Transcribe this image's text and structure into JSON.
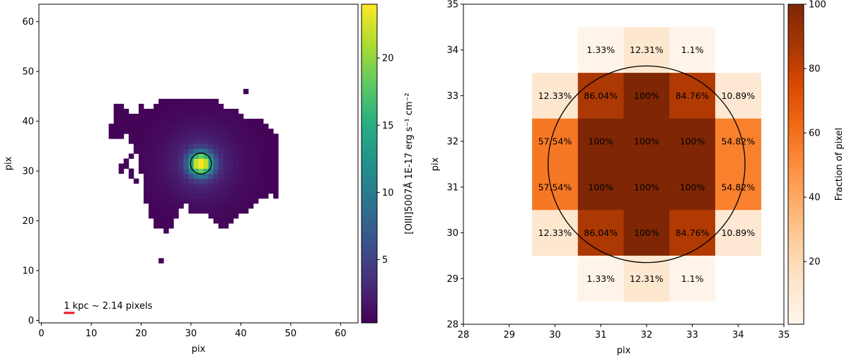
{
  "chart_data": [
    {
      "type": "heatmap",
      "title": "",
      "xlabel": "pix",
      "ylabel": "pix",
      "xlim": [
        -0.5,
        63.5
      ],
      "ylim": [
        -0.5,
        63.5
      ],
      "x_ticks": [
        0,
        10,
        20,
        30,
        40,
        50,
        60
      ],
      "y_ticks": [
        0,
        10,
        20,
        30,
        40,
        50,
        60
      ],
      "colormap": "viridis",
      "colorbar": {
        "label": "[OIII]5007Å 1E-17 erg s⁻¹ cm⁻²",
        "range": [
          0.3,
          24
        ],
        "ticks": [
          5,
          10,
          15,
          20
        ]
      },
      "peak_center": [
        32,
        31.5
      ],
      "aperture_circle": {
        "center": [
          32,
          31.5
        ],
        "radius": 2.1,
        "color": "#000000"
      },
      "isolated_pixels": [
        [
          41,
          46
        ],
        [
          24,
          12
        ]
      ],
      "scale_bar": {
        "label": "1 kpc ~ 2.14 pixels",
        "length_pix": 2.14,
        "start_x": 4.5,
        "y": 1.5,
        "color": "#e8141b"
      }
    },
    {
      "type": "heatmap",
      "title": "",
      "xlabel": "pix",
      "ylabel": "pix",
      "xlim": [
        28,
        35
      ],
      "ylim": [
        28,
        35
      ],
      "x_ticks": [
        28,
        29,
        30,
        31,
        32,
        33,
        34,
        35
      ],
      "y_ticks": [
        28,
        29,
        30,
        31,
        32,
        33,
        34,
        35
      ],
      "colormap": "Oranges",
      "colorbar": {
        "label": "Fraction of pixel",
        "range": [
          0.5,
          100
        ],
        "ticks": [
          20,
          40,
          60,
          80,
          100
        ]
      },
      "circle": {
        "center": [
          32,
          31.5
        ],
        "radius": 2.15,
        "color": "#000000"
      },
      "cells": [
        {
          "x": 31,
          "y": 34,
          "value": 1.33,
          "label": "1.33%"
        },
        {
          "x": 32,
          "y": 34,
          "value": 12.31,
          "label": "12.31%"
        },
        {
          "x": 33,
          "y": 34,
          "value": 1.1,
          "label": "1.1%"
        },
        {
          "x": 30,
          "y": 33,
          "value": 12.33,
          "label": "12.33%"
        },
        {
          "x": 31,
          "y": 33,
          "value": 86.04,
          "label": "86.04%"
        },
        {
          "x": 32,
          "y": 33,
          "value": 100,
          "label": "100%"
        },
        {
          "x": 33,
          "y": 33,
          "value": 84.76,
          "label": "84.76%"
        },
        {
          "x": 34,
          "y": 33,
          "value": 10.89,
          "label": "10.89%"
        },
        {
          "x": 30,
          "y": 32,
          "value": 57.54,
          "label": "57.54%"
        },
        {
          "x": 31,
          "y": 32,
          "value": 100,
          "label": "100%"
        },
        {
          "x": 32,
          "y": 32,
          "value": 100,
          "label": "100%"
        },
        {
          "x": 33,
          "y": 32,
          "value": 100,
          "label": "100%"
        },
        {
          "x": 34,
          "y": 32,
          "value": 54.82,
          "label": "54.82%"
        },
        {
          "x": 30,
          "y": 31,
          "value": 57.54,
          "label": "57.54%"
        },
        {
          "x": 31,
          "y": 31,
          "value": 100,
          "label": "100%"
        },
        {
          "x": 32,
          "y": 31,
          "value": 100,
          "label": "100%"
        },
        {
          "x": 33,
          "y": 31,
          "value": 100,
          "label": "100%"
        },
        {
          "x": 34,
          "y": 31,
          "value": 54.82,
          "label": "54.82%"
        },
        {
          "x": 30,
          "y": 30,
          "value": 12.33,
          "label": "12.33%"
        },
        {
          "x": 31,
          "y": 30,
          "value": 86.04,
          "label": "86.04%"
        },
        {
          "x": 32,
          "y": 30,
          "value": 100,
          "label": "100%"
        },
        {
          "x": 33,
          "y": 30,
          "value": 84.76,
          "label": "84.76%"
        },
        {
          "x": 34,
          "y": 30,
          "value": 10.89,
          "label": "10.89%"
        },
        {
          "x": 31,
          "y": 29,
          "value": 1.33,
          "label": "1.33%"
        },
        {
          "x": 32,
          "y": 29,
          "value": 12.31,
          "label": "12.31%"
        },
        {
          "x": 33,
          "y": 29,
          "value": 1.1,
          "label": "1.1%"
        }
      ]
    }
  ]
}
